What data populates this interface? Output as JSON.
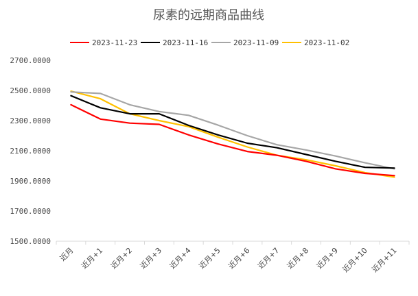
{
  "chart_data": {
    "type": "line",
    "title": "尿素的远期商品曲线",
    "xlabel": "",
    "ylabel": "",
    "categories": [
      "近月",
      "近月+1",
      "近月+2",
      "近月+3",
      "近月+4",
      "近月+5",
      "近月+6",
      "近月+7",
      "近月+8",
      "近月+9",
      "近月+10",
      "近月+11"
    ],
    "ylim": [
      1500,
      2700
    ],
    "yticks": [
      "1500.0000",
      "1700.0000",
      "1900.0000",
      "2100.0000",
      "2300.0000",
      "2500.0000",
      "2700.0000"
    ],
    "grid": false,
    "legend_position": "top",
    "series": [
      {
        "name": "2023-11-23",
        "color": "#ff0000",
        "values": [
          2405,
          2310,
          2283,
          2275,
          2205,
          2145,
          2095,
          2070,
          2030,
          1980,
          1950,
          1935
        ]
      },
      {
        "name": "2023-11-16",
        "color": "#000000",
        "values": [
          2465,
          2385,
          2345,
          2345,
          2268,
          2205,
          2150,
          2120,
          2075,
          2030,
          1990,
          1985
        ]
      },
      {
        "name": "2023-11-09",
        "color": "#a6a6a6",
        "values": [
          2490,
          2480,
          2405,
          2360,
          2335,
          2270,
          2200,
          2140,
          2105,
          2065,
          2020,
          1980
        ]
      },
      {
        "name": "2023-11-02",
        "color": "#ffc000",
        "values": [
          2495,
          2445,
          2345,
          2300,
          2260,
          2190,
          2125,
          2070,
          2040,
          2000,
          1955,
          1925
        ]
      }
    ]
  }
}
